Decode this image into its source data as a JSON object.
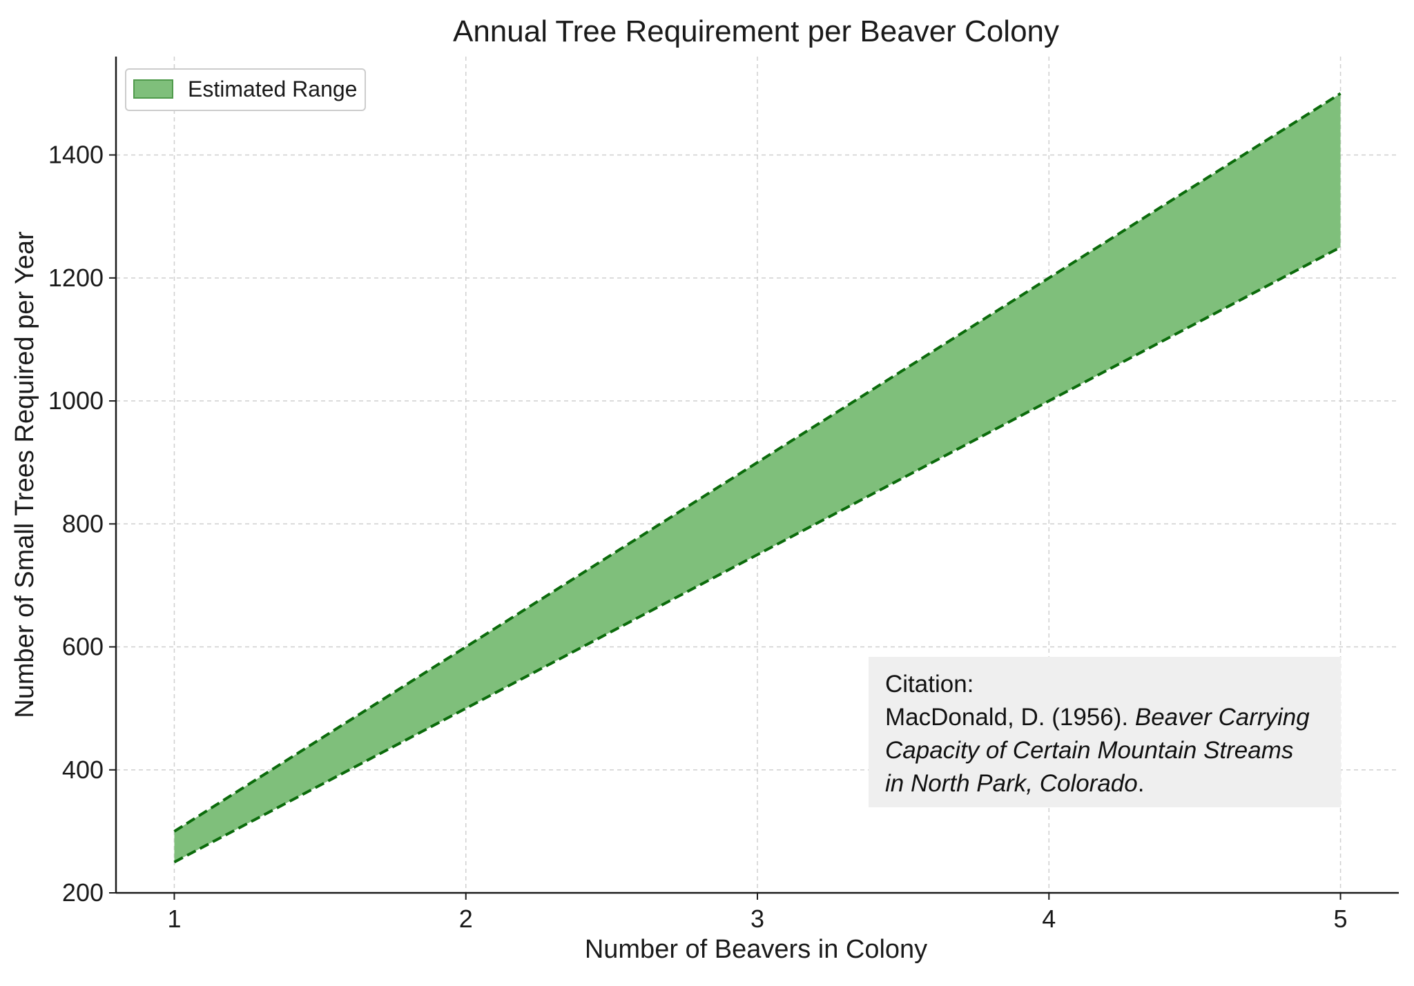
{
  "chart_data": {
    "type": "area",
    "title": "Annual Tree Requirement per Beaver Colony",
    "xlabel": "Number of Beavers in Colony",
    "ylabel": "Number of Small Trees Required per Year",
    "x": [
      1,
      2,
      3,
      4,
      5
    ],
    "x_ticks": [
      "1",
      "2",
      "3",
      "4",
      "5"
    ],
    "y_ticks": [
      "200",
      "400",
      "600",
      "800",
      "1000",
      "1200",
      "1400"
    ],
    "xlim": [
      0.8,
      5.2
    ],
    "ylim": [
      200,
      1560
    ],
    "grid": true,
    "legend_position": "top-left",
    "series": [
      {
        "name": "Estimated Range",
        "lower": [
          250,
          500,
          750,
          1000,
          1250
        ],
        "upper": [
          300,
          600,
          900,
          1200,
          1500
        ],
        "fill_color": "#7fbf7b",
        "line_color": "#0b6b0b"
      }
    ],
    "annotation": {
      "label": "Citation:",
      "author": "MacDonald, D. (1956).",
      "work_line1": "Beaver Carrying",
      "work_line2": "Capacity of Certain Mountain Streams",
      "work_line3": "in North Park, Colorado",
      "end": "."
    }
  }
}
